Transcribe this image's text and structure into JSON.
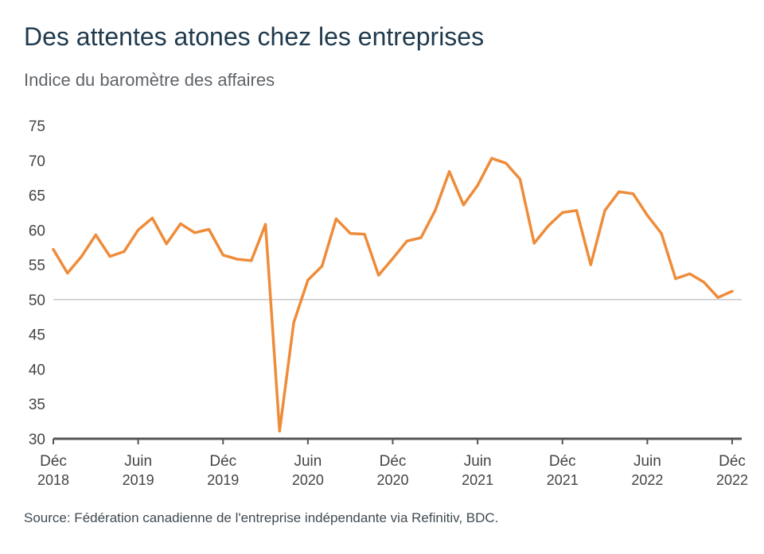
{
  "title": "Des attentes atones chez les entreprises",
  "subtitle": "Indice du baromètre des affaires",
  "source": "Source: Fédération canadienne de l'entreprise indépendante via Refinitiv, BDC.",
  "colors": {
    "line": "#ee8c3a",
    "axis": "#555555",
    "reference_line": "#c8c8c8"
  },
  "chart_data": {
    "type": "line",
    "title": "Des attentes atones chez les entreprises",
    "subtitle": "Indice du baromètre des affaires",
    "xlabel": "",
    "ylabel": "",
    "ylim": [
      30,
      75
    ],
    "yticks": [
      30,
      35,
      40,
      45,
      50,
      55,
      60,
      65,
      70,
      75
    ],
    "reference_line": 50,
    "grid": false,
    "legend": "none",
    "x_start": "2018-12",
    "x_end": "2022-12",
    "xticks": [
      {
        "month": "2018-12",
        "line1": "Déc",
        "line2": "2018"
      },
      {
        "month": "2019-06",
        "line1": "Juin",
        "line2": "2019"
      },
      {
        "month": "2019-12",
        "line1": "Déc",
        "line2": "2019"
      },
      {
        "month": "2020-06",
        "line1": "Juin",
        "line2": "2020"
      },
      {
        "month": "2020-12",
        "line1": "Déc",
        "line2": "2020"
      },
      {
        "month": "2021-06",
        "line1": "Juin",
        "line2": "2021"
      },
      {
        "month": "2021-12",
        "line1": "Déc",
        "line2": "2021"
      },
      {
        "month": "2022-06",
        "line1": "Juin",
        "line2": "2022"
      },
      {
        "month": "2022-12",
        "line1": "Déc",
        "line2": "2022"
      }
    ],
    "series": [
      {
        "values": [
          [
            "2018-12",
            57.2
          ],
          [
            "2019-01",
            53.8
          ],
          [
            "2019-02",
            56.2
          ],
          [
            "2019-03",
            59.3
          ],
          [
            "2019-04",
            56.2
          ],
          [
            "2019-05",
            56.9
          ],
          [
            "2019-06",
            60.0
          ],
          [
            "2019-07",
            61.7
          ],
          [
            "2019-08",
            58.0
          ],
          [
            "2019-09",
            60.9
          ],
          [
            "2019-10",
            59.6
          ],
          [
            "2019-11",
            60.1
          ],
          [
            "2019-12",
            56.4
          ],
          [
            "2020-01",
            55.8
          ],
          [
            "2020-02",
            55.6
          ],
          [
            "2020-03",
            60.8
          ],
          [
            "2020-04",
            31.1
          ],
          [
            "2020-05",
            46.7
          ],
          [
            "2020-06",
            52.8
          ],
          [
            "2020-07",
            54.8
          ],
          [
            "2020-08",
            61.6
          ],
          [
            "2020-09",
            59.5
          ],
          [
            "2020-10",
            59.4
          ],
          [
            "2020-11",
            53.5
          ],
          [
            "2020-12",
            55.9
          ],
          [
            "2021-01",
            58.4
          ],
          [
            "2021-02",
            58.9
          ],
          [
            "2021-03",
            62.8
          ],
          [
            "2021-04",
            68.4
          ],
          [
            "2021-05",
            63.6
          ],
          [
            "2021-06",
            66.4
          ],
          [
            "2021-07",
            70.3
          ],
          [
            "2021-08",
            69.6
          ],
          [
            "2021-09",
            67.3
          ],
          [
            "2021-10",
            58.1
          ],
          [
            "2021-11",
            60.6
          ],
          [
            "2021-12",
            62.5
          ],
          [
            "2022-01",
            62.8
          ],
          [
            "2022-02",
            55.0
          ],
          [
            "2022-03",
            62.8
          ],
          [
            "2022-04",
            65.5
          ],
          [
            "2022-05",
            65.2
          ],
          [
            "2022-06",
            62.1
          ],
          [
            "2022-07",
            59.5
          ],
          [
            "2022-08",
            53.0
          ],
          [
            "2022-09",
            53.7
          ],
          [
            "2022-10",
            52.5
          ],
          [
            "2022-11",
            50.3
          ],
          [
            "2022-12",
            51.2
          ]
        ]
      }
    ]
  }
}
